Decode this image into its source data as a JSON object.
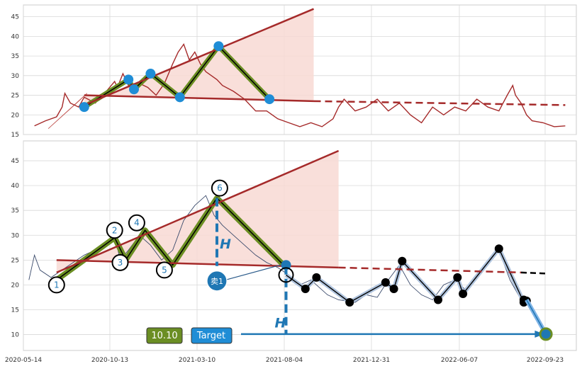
{
  "chart_data": [
    {
      "type": "line",
      "panel": "top",
      "title": "",
      "xlabel": "",
      "ylabel": "",
      "ylim": [
        15,
        48
      ],
      "yticks": [
        15,
        20,
        25,
        30,
        35,
        40,
        45
      ],
      "grid": true,
      "line_color": "#a52a2a",
      "trend_color": "#a52a2a",
      "pattern_color": "#6b8e23",
      "pivot_color": "#1f8dd6",
      "fill_color": "#f8d9d4",
      "series": [
        {
          "kind": "price",
          "points": [
            [
              0.02,
              17.2
            ],
            [
              0.04,
              18.5
            ],
            [
              0.06,
              19.5
            ],
            [
              0.07,
              22
            ],
            [
              0.075,
              25.5
            ],
            [
              0.085,
              23
            ],
            [
              0.1,
              22
            ],
            [
              0.11,
              24.5
            ],
            [
              0.13,
              23
            ],
            [
              0.15,
              26
            ],
            [
              0.165,
              28.5
            ],
            [
              0.17,
              27
            ],
            [
              0.18,
              30.5
            ],
            [
              0.19,
              27.5
            ],
            [
              0.2,
              26
            ],
            [
              0.21,
              28
            ],
            [
              0.225,
              27
            ],
            [
              0.24,
              25
            ],
            [
              0.255,
              28
            ],
            [
              0.27,
              33
            ],
            [
              0.28,
              36
            ],
            [
              0.29,
              38
            ],
            [
              0.3,
              34
            ],
            [
              0.31,
              36
            ],
            [
              0.32,
              33
            ],
            [
              0.33,
              31
            ],
            [
              0.35,
              29
            ],
            [
              0.36,
              27.5
            ],
            [
              0.38,
              26
            ],
            [
              0.4,
              24
            ],
            [
              0.42,
              21
            ],
            [
              0.44,
              21
            ],
            [
              0.46,
              19
            ],
            [
              0.48,
              18
            ],
            [
              0.5,
              17
            ],
            [
              0.52,
              18
            ],
            [
              0.54,
              17
            ],
            [
              0.56,
              19
            ],
            [
              0.57,
              22
            ],
            [
              0.58,
              24
            ],
            [
              0.6,
              21
            ],
            [
              0.62,
              22
            ],
            [
              0.64,
              24
            ],
            [
              0.66,
              21
            ],
            [
              0.68,
              23
            ],
            [
              0.7,
              20
            ],
            [
              0.72,
              18
            ],
            [
              0.74,
              22
            ],
            [
              0.76,
              20
            ],
            [
              0.78,
              22
            ],
            [
              0.8,
              21
            ],
            [
              0.82,
              24
            ],
            [
              0.84,
              22
            ],
            [
              0.86,
              21
            ],
            [
              0.875,
              25
            ],
            [
              0.885,
              27.5
            ],
            [
              0.89,
              25
            ],
            [
              0.9,
              23
            ],
            [
              0.91,
              20
            ],
            [
              0.92,
              18.5
            ],
            [
              0.94,
              18
            ],
            [
              0.96,
              17
            ],
            [
              0.98,
              17.2
            ]
          ]
        }
      ],
      "pivots": [
        [
          0.11,
          22
        ],
        [
          0.19,
          29
        ],
        [
          0.2,
          26.5
        ],
        [
          0.23,
          30.5
        ],
        [
          0.283,
          24.5
        ],
        [
          0.353,
          37.5
        ],
        [
          0.445,
          24
        ]
      ],
      "upper_trend": [
        [
          0.11,
          22.5
        ],
        [
          0.525,
          47
        ]
      ],
      "lower_trend": [
        [
          0.11,
          25
        ],
        [
          0.525,
          23.5
        ]
      ],
      "lower_trend_ext": [
        [
          0.525,
          23.5
        ],
        [
          0.98,
          22.5
        ]
      ]
    },
    {
      "type": "line",
      "panel": "bottom",
      "title": "",
      "xlabel": "",
      "ylabel": "",
      "ylim": [
        6.8,
        49
      ],
      "yticks": [
        10,
        15,
        20,
        25,
        30,
        35,
        40,
        45
      ],
      "xticks": [
        "2020-05-14",
        "2020-10-13",
        "2021-03-10",
        "2021-08-04",
        "2021-12-31",
        "2022-06-07",
        "2022-09-23"
      ],
      "grid": true,
      "price_color": "#3a4a6b",
      "pattern_color": "#6b8e23",
      "trend_color": "#a52a2a",
      "zigzag_color": "#000000",
      "zigzag_fill": "#b0c4de",
      "target_color": "#1f77b4",
      "fill_color": "#f8d9d4",
      "labels": [
        "1",
        "2",
        "3",
        "4",
        "5",
        "6",
        "卖1"
      ],
      "height_label": "H",
      "target_value_label": "10.10",
      "target_label": "Target",
      "pattern_points": [
        [
          0.06,
          21
        ],
        [
          0.165,
          29.5
        ],
        [
          0.185,
          25
        ],
        [
          0.22,
          31
        ],
        [
          0.27,
          24
        ],
        [
          0.35,
          37.5
        ],
        [
          0.475,
          23.5
        ]
      ],
      "labelled_pivots": [
        [
          0.06,
          20,
          "1"
        ],
        [
          0.165,
          31,
          "2"
        ],
        [
          0.175,
          24.5,
          "3"
        ],
        [
          0.205,
          32.5,
          "4"
        ],
        [
          0.255,
          23,
          "5"
        ],
        [
          0.355,
          39.5,
          "6"
        ]
      ],
      "upper_trend": [
        [
          0.06,
          22.5
        ],
        [
          0.57,
          47
        ]
      ],
      "lower_trend": [
        [
          0.06,
          25
        ],
        [
          0.57,
          23.5
        ]
      ],
      "lower_trend_ext": [
        [
          0.57,
          23.5
        ],
        [
          0.9,
          22.5
        ]
      ],
      "black_trend_ext": [
        [
          0.9,
          22.5
        ],
        [
          0.945,
          22.3
        ]
      ],
      "zigzag": [
        [
          0.475,
          22
        ],
        [
          0.51,
          19.2
        ],
        [
          0.53,
          21.5
        ],
        [
          0.59,
          16.5
        ],
        [
          0.655,
          20.5
        ],
        [
          0.67,
          19.2
        ],
        [
          0.685,
          24.8
        ],
        [
          0.75,
          17
        ],
        [
          0.785,
          21.5
        ],
        [
          0.795,
          18.2
        ],
        [
          0.86,
          27.3
        ],
        [
          0.905,
          16.5
        ],
        [
          0.905,
          17
        ],
        [
          0.91,
          16.8
        ]
      ],
      "target_arrow": [
        [
          0.91,
          17
        ],
        [
          0.945,
          10.1
        ]
      ],
      "target_point": [
        0.945,
        10.1
      ],
      "sell_point": [
        0.475,
        24
      ],
      "price_points": [
        [
          0.01,
          21
        ],
        [
          0.02,
          26
        ],
        [
          0.03,
          23
        ],
        [
          0.05,
          21.5
        ],
        [
          0.07,
          23
        ],
        [
          0.09,
          24.5
        ],
        [
          0.11,
          26
        ],
        [
          0.13,
          27
        ],
        [
          0.15,
          28
        ],
        [
          0.165,
          30
        ],
        [
          0.175,
          25
        ],
        [
          0.19,
          27
        ],
        [
          0.21,
          30
        ],
        [
          0.23,
          28
        ],
        [
          0.25,
          25
        ],
        [
          0.27,
          27
        ],
        [
          0.29,
          33
        ],
        [
          0.31,
          36
        ],
        [
          0.33,
          38
        ],
        [
          0.345,
          34
        ],
        [
          0.36,
          32
        ],
        [
          0.38,
          30
        ],
        [
          0.4,
          28
        ],
        [
          0.42,
          26
        ],
        [
          0.44,
          24.5
        ],
        [
          0.46,
          23.5
        ],
        [
          0.48,
          22
        ],
        [
          0.5,
          20
        ],
        [
          0.52,
          21
        ],
        [
          0.55,
          18
        ],
        [
          0.57,
          17
        ],
        [
          0.6,
          16.5
        ],
        [
          0.62,
          18
        ],
        [
          0.64,
          17.5
        ],
        [
          0.66,
          21
        ],
        [
          0.68,
          24
        ],
        [
          0.7,
          20
        ],
        [
          0.72,
          18
        ],
        [
          0.74,
          17
        ],
        [
          0.76,
          20
        ],
        [
          0.78,
          21
        ],
        [
          0.8,
          19
        ],
        [
          0.82,
          22
        ],
        [
          0.84,
          25
        ],
        [
          0.86,
          27
        ],
        [
          0.87,
          24
        ],
        [
          0.88,
          21
        ],
        [
          0.89,
          19
        ],
        [
          0.9,
          17
        ]
      ]
    }
  ]
}
